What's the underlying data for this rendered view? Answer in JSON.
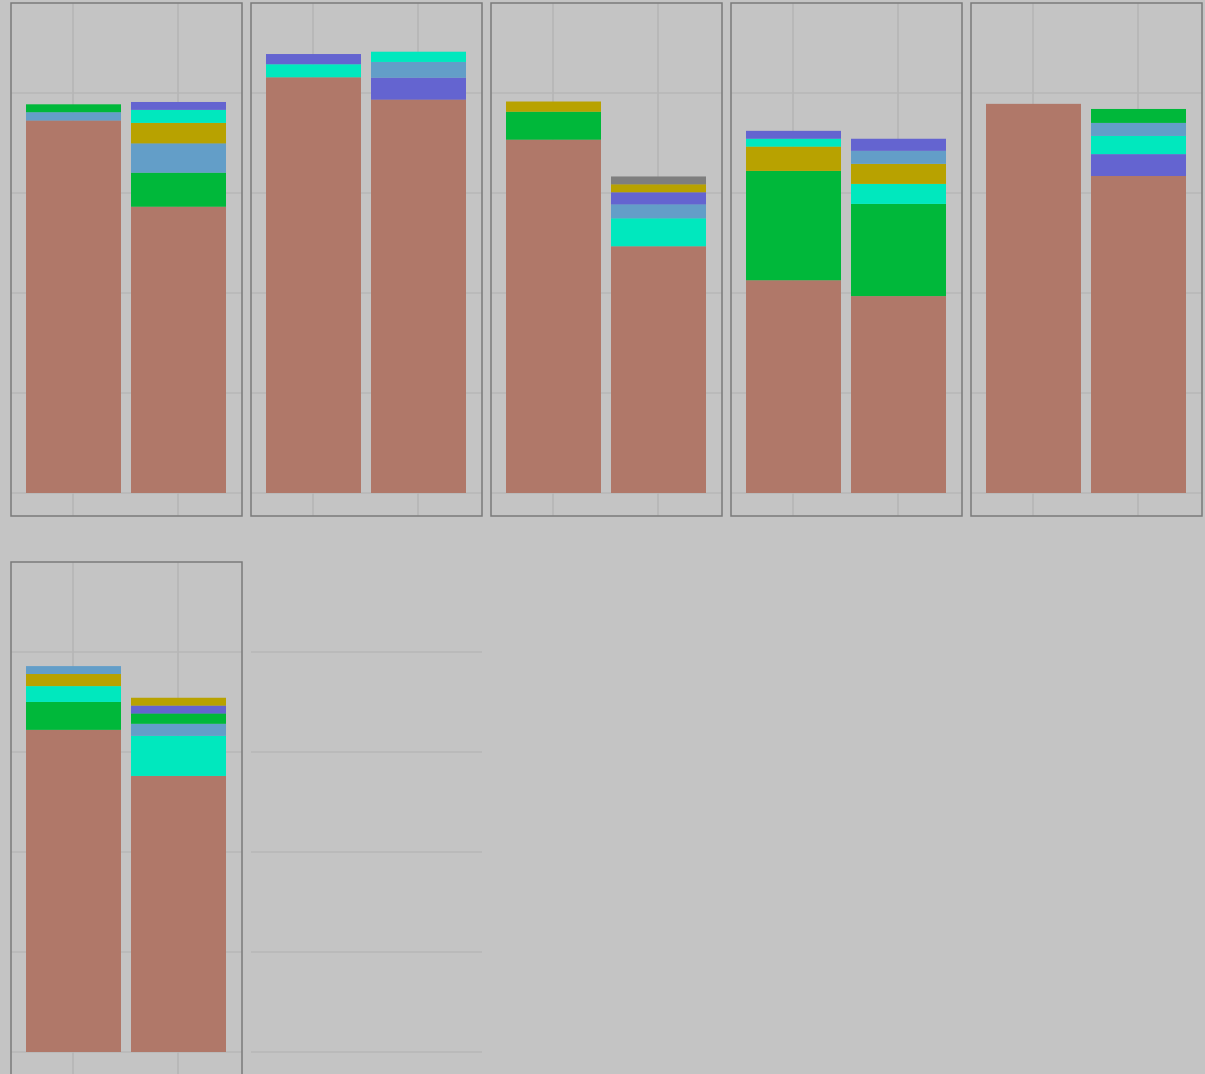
{
  "chart_data": {
    "type": "bar",
    "stacked": true,
    "layout": "small-multiples",
    "panel_count": 6,
    "grid": true,
    "ylim": [
      0,
      100
    ],
    "x": [
      "1",
      "2"
    ],
    "colors": {
      "s1": "#b07869",
      "s2": "#00b83a",
      "s3": "#639ec8",
      "s4": "#b8a200",
      "s5": "#00e8be",
      "s6": "#6464d0",
      "s7": "#7e7e7e"
    },
    "panels": [
      {
        "bars": [
          [
            [
              "s1",
              80.0
            ],
            [
              "s3",
              1.8
            ],
            [
              "s2",
              1.7
            ]
          ],
          [
            [
              "s1",
              61.5
            ],
            [
              "s2",
              7.3
            ],
            [
              "s3",
              6.3
            ],
            [
              "s4",
              4.4
            ],
            [
              "s5",
              2.8
            ],
            [
              "s6",
              1.7
            ]
          ]
        ]
      },
      {
        "bars": [
          [
            [
              "s1",
              89.3
            ],
            [
              "s5",
              2.8
            ],
            [
              "s6",
              2.2
            ]
          ],
          [
            [
              "s1",
              84.5
            ],
            [
              "s6",
              4.7
            ],
            [
              "s3",
              3.4
            ],
            [
              "s5",
              2.2
            ]
          ]
        ]
      },
      {
        "bars": [
          [
            [
              "s1",
              75.9
            ],
            [
              "s2",
              6.0
            ],
            [
              "s4",
              2.2
            ]
          ],
          [
            [
              "s1",
              53.0
            ],
            [
              "s5",
              6.0
            ],
            [
              "s3",
              3.0
            ],
            [
              "s6",
              2.6
            ],
            [
              "s4",
              1.7
            ],
            [
              "s7",
              1.7
            ]
          ]
        ]
      },
      {
        "bars": [
          [
            [
              "s1",
              45.7
            ],
            [
              "s2",
              23.5
            ],
            [
              "s4",
              5.2
            ],
            [
              "s5",
              1.7
            ],
            [
              "s6",
              1.7
            ]
          ],
          [
            [
              "s1",
              42.3
            ],
            [
              "s2",
              19.8
            ],
            [
              "s5",
              4.3
            ],
            [
              "s4",
              4.3
            ],
            [
              "s3",
              2.8
            ],
            [
              "s6",
              2.6
            ]
          ]
        ]
      },
      {
        "bars": [
          [
            [
              "s1",
              83.6
            ]
          ],
          [
            [
              "s1",
              68.1
            ],
            [
              "s6",
              4.7
            ],
            [
              "s5",
              3.9
            ],
            [
              "s3",
              2.8
            ],
            [
              "s2",
              3.0
            ]
          ]
        ]
      },
      {
        "bars": [
          [
            [
              "s1",
              69.2
            ],
            [
              "s2",
              6.0
            ],
            [
              "s5",
              3.4
            ],
            [
              "s4",
              2.6
            ],
            [
              "s3",
              1.7
            ]
          ],
          [
            [
              "s1",
              59.3
            ],
            [
              "s5",
              8.6
            ],
            [
              "s3",
              2.6
            ],
            [
              "s2",
              2.2
            ],
            [
              "s6",
              1.7
            ],
            [
              "s4",
              1.7
            ]
          ]
        ]
      }
    ]
  }
}
